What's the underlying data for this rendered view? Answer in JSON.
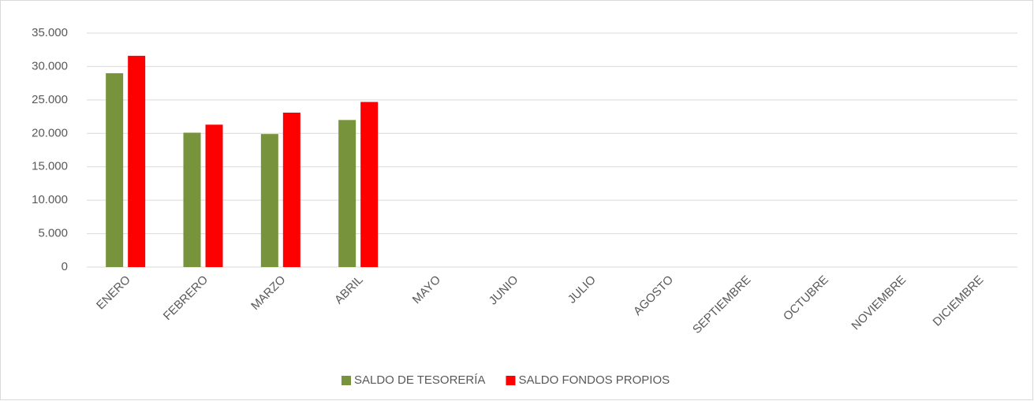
{
  "chart_data": {
    "type": "bar",
    "categories": [
      "ENERO",
      "FEBRERO",
      "MARZO",
      "ABRIL",
      "MAYO",
      "JUNIO",
      "JULIO",
      "AGOSTO",
      "SEPTIEMBRE",
      "OCTUBRE",
      "NOVIEMBRE",
      "DICIEMBRE"
    ],
    "series": [
      {
        "name": "SALDO DE TESORERÍA",
        "color": "#77933c",
        "values": [
          29000,
          20100,
          19900,
          22000,
          null,
          null,
          null,
          null,
          null,
          null,
          null,
          null
        ]
      },
      {
        "name": "SALDO FONDOS PROPIOS",
        "color": "#ff0000",
        "values": [
          31600,
          21300,
          23100,
          24700,
          null,
          null,
          null,
          null,
          null,
          null,
          null,
          null
        ]
      }
    ],
    "ylim": [
      0,
      35000
    ],
    "yticks": [
      0,
      {
        "value": 5000,
        "label": "5.000"
      },
      {
        "value": 10000,
        "label": "10.000"
      },
      {
        "value": 15000,
        "label": "15.000"
      },
      {
        "value": 20000,
        "label": "20.000"
      },
      {
        "value": 25000,
        "label": "25.000"
      },
      {
        "value": 30000,
        "label": "30.000"
      },
      {
        "value": 35000,
        "label": "35.000"
      }
    ],
    "grid": true,
    "legend": "bottom"
  }
}
